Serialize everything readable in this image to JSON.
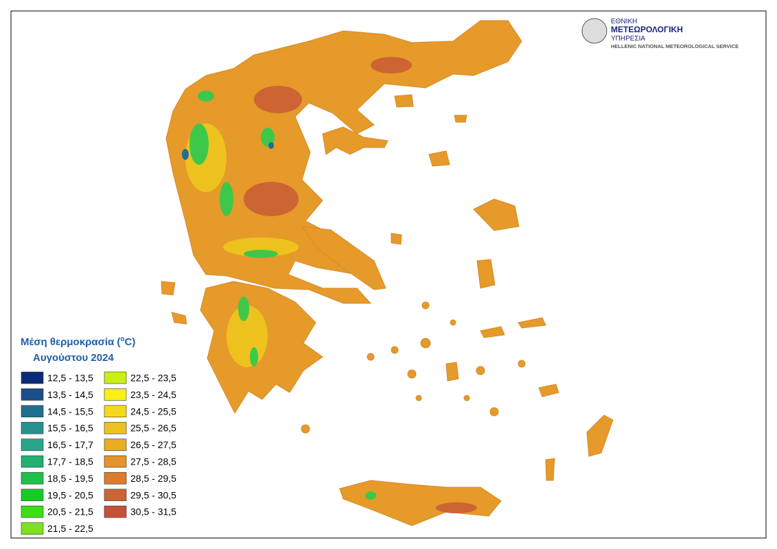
{
  "logo": {
    "line1": "ΕΘΝΙΚΗ",
    "line2": "ΜΕΤΕΩΡΟΛΟΓΙΚΗ",
    "line3": "ΥΠΗΡΕΣΙΑ",
    "line4": "HELLENIC NATIONAL METEOROLOGICAL SERVICE"
  },
  "legend": {
    "title": {
      "prefix": "Μέση θερμοκρασία (",
      "sup": "o",
      "suffix": "C)",
      "line2": "Αυγούστου 2024"
    },
    "items": [
      {
        "label": "12,5 - 13,5",
        "color": "#0c2a78"
      },
      {
        "label": "13,5 - 14,5",
        "color": "#1b4f8a"
      },
      {
        "label": "14,5 - 15,5",
        "color": "#1f6f90"
      },
      {
        "label": "15,5 - 16,5",
        "color": "#26918f"
      },
      {
        "label": "16,5 - 17,7",
        "color": "#2aa58a"
      },
      {
        "label": "17,7 - 18,5",
        "color": "#22b070"
      },
      {
        "label": "18,5 - 19,5",
        "color": "#1ec04a"
      },
      {
        "label": "19,5 - 20,5",
        "color": "#16cc22"
      },
      {
        "label": "20,5 - 21,5",
        "color": "#3ede1a"
      },
      {
        "label": "21,5 - 22,5",
        "color": "#7ee21e"
      },
      {
        "label": "22,5 - 23,5",
        "color": "#c8f016"
      },
      {
        "label": "23,5 - 24,5",
        "color": "#f8f018"
      },
      {
        "label": "24,5 - 25,5",
        "color": "#f4d81c"
      },
      {
        "label": "25,5 - 26,5",
        "color": "#eec21e"
      },
      {
        "label": "26,5 - 27,5",
        "color": "#eaac22"
      },
      {
        "label": "27,5 - 28,5",
        "color": "#e49428"
      },
      {
        "label": "28,5 - 29,5",
        "color": "#da7c2e"
      },
      {
        "label": "29,5 - 30,5",
        "color": "#cc6434"
      },
      {
        "label": "30,5 - 31,5",
        "color": "#c45238"
      }
    ]
  }
}
